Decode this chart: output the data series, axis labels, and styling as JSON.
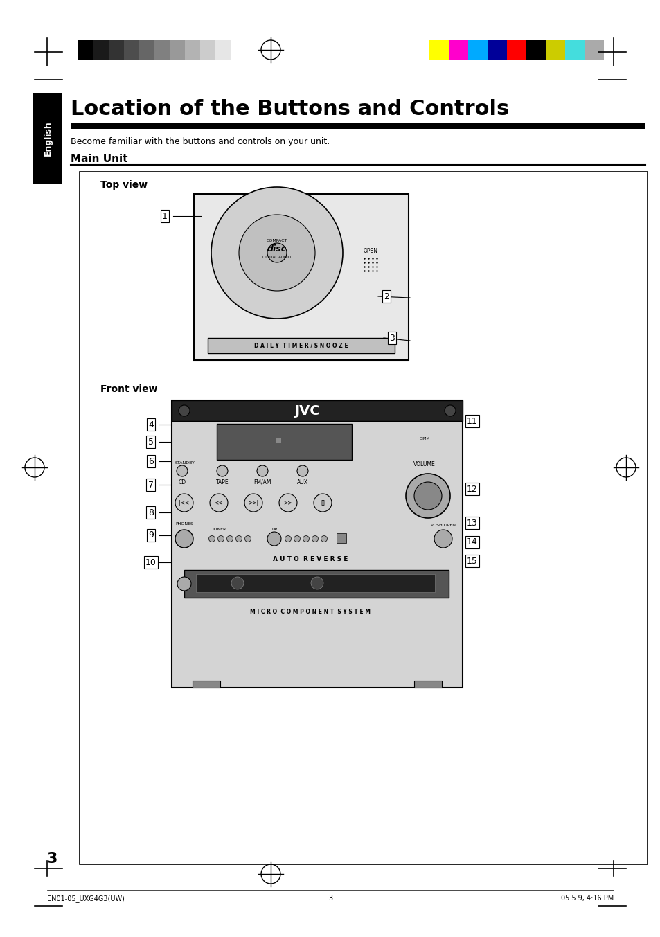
{
  "title": "Location of the Buttons and Controls",
  "subtitle": "Become familiar with the buttons and controls on your unit.",
  "section": "Main Unit",
  "side_label": "English",
  "top_view_label": "Top view",
  "front_view_label": "Front view",
  "page_number": "3",
  "footer_left": "EN01-05_UXG4G3(UW)",
  "footer_center": "3",
  "footer_right": "05.5.9, 4:16 PM",
  "grayscale_colors": [
    "#000000",
    "#1a1a1a",
    "#333333",
    "#4d4d4d",
    "#666666",
    "#808080",
    "#999999",
    "#b3b3b3",
    "#cccccc",
    "#e6e6e6",
    "#ffffff"
  ],
  "color_swatches": [
    "#ffff00",
    "#ff00cc",
    "#00aaff",
    "#000099",
    "#ff0000",
    "#000000",
    "#cccc00",
    "#44dddd",
    "#aaaaaa"
  ],
  "bg_color": "#ffffff",
  "label_numbers_top": [
    "1",
    "2",
    "3"
  ],
  "label_numbers_front": [
    "4",
    "5",
    "6",
    "7",
    "8",
    "9",
    "10",
    "11",
    "12",
    "13",
    "14",
    "15"
  ]
}
